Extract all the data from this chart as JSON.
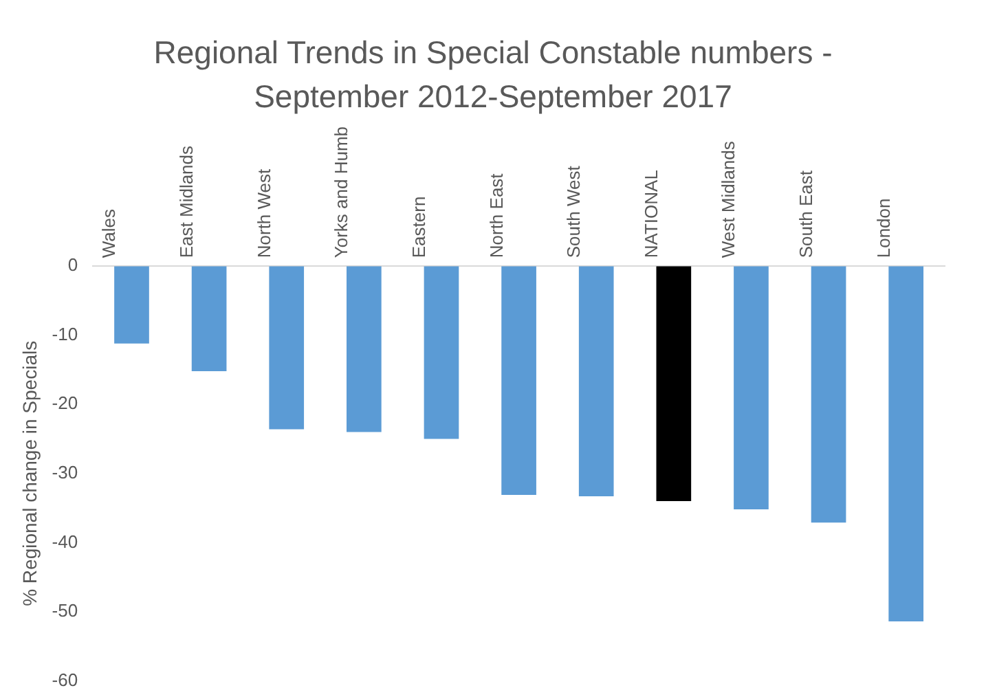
{
  "chart_data": {
    "type": "bar",
    "title": "Regional Trends in Special Constable numbers - September 2012-September 2017",
    "ylabel": "% Regional change in Specials",
    "categories": [
      "Wales",
      "East Midlands",
      "North West",
      "Yorks and Humb",
      "Eastern",
      "North East",
      "South West",
      "NATIONAL",
      "West Midlands",
      "South East",
      "London"
    ],
    "values": [
      -11.2,
      -15.2,
      -23.6,
      -24,
      -25,
      -33.1,
      -33.3,
      -34,
      -35.2,
      -37.1,
      -51.4
    ],
    "colors": [
      "#5b9bd5",
      "#5b9bd5",
      "#5b9bd5",
      "#5b9bd5",
      "#5b9bd5",
      "#5b9bd5",
      "#5b9bd5",
      "#000000",
      "#5b9bd5",
      "#5b9bd5",
      "#5b9bd5"
    ],
    "ylim": [
      -60,
      0
    ],
    "yticks": [
      0,
      -10,
      -20,
      -30,
      -40,
      -50,
      -60
    ],
    "grid": false,
    "legend": false
  }
}
